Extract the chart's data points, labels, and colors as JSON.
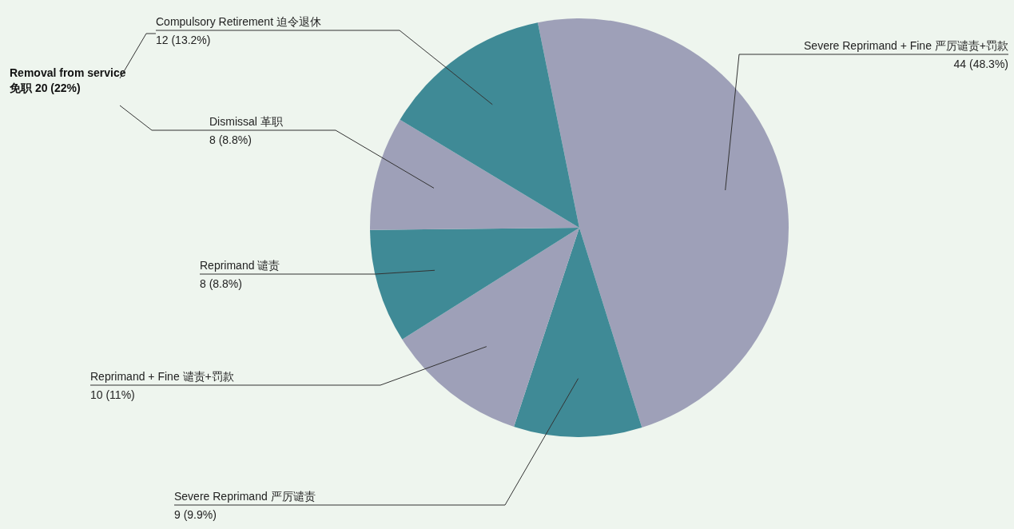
{
  "chart_data": {
    "type": "pie",
    "categories": [
      "Severe Reprimand + Fine 严厉谴责+罚款",
      "Severe Reprimand  严厉谴责",
      "Reprimand + Fine 谴责+罚款",
      "Reprimand 谴责",
      "Dismissal 革职",
      "Compulsory Retirement 迫令退休"
    ],
    "values": [
      44,
      9,
      10,
      8,
      8,
      12
    ],
    "value_labels": [
      "44 (48.3%)",
      "9 (9.9%)",
      "10 (11%)",
      "8 (8.8%)",
      "8 (8.8%)",
      "12 (13.2%)"
    ],
    "colors": [
      "#9ea0b8",
      "#3f8a96",
      "#9ea0b8",
      "#3f8a96",
      "#9ea0b8",
      "#3f8a96"
    ],
    "annotations": [
      "Removal from service 免职 20 (22%)"
    ],
    "legend": false
  }
}
